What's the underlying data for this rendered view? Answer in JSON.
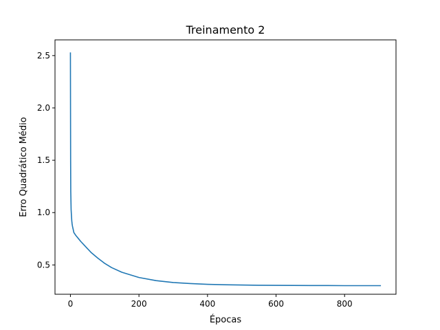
{
  "chart_data": {
    "type": "line",
    "title": "Treinamento 2",
    "xlabel": "Épocas",
    "ylabel": "Erro Quadrático Médio",
    "xlim": [
      -45,
      950
    ],
    "ylim": [
      0.22,
      2.65
    ],
    "xticks": [
      0,
      200,
      400,
      600,
      800
    ],
    "yticks": [
      0.5,
      1.0,
      1.5,
      2.0,
      2.5
    ],
    "xtick_labels": [
      "0",
      "200",
      "400",
      "600",
      "800"
    ],
    "ytick_labels": [
      "0.5",
      "1.0",
      "1.5",
      "2.0",
      "2.5"
    ],
    "grid": false,
    "series": [
      {
        "color": "#1f77b4",
        "x": [
          0,
          0.3,
          0.6,
          1,
          2,
          3,
          4,
          5,
          6,
          8,
          10,
          12,
          15,
          20,
          25,
          30,
          40,
          50,
          60,
          80,
          100,
          120,
          150,
          200,
          250,
          300,
          350,
          400,
          450,
          500,
          550,
          600,
          650,
          700,
          750,
          800,
          850,
          906
        ],
        "y": [
          2.53,
          2.0,
          1.5,
          1.2,
          1.03,
          0.97,
          0.92,
          0.89,
          0.87,
          0.84,
          0.81,
          0.8,
          0.785,
          0.765,
          0.745,
          0.725,
          0.69,
          0.655,
          0.62,
          0.565,
          0.515,
          0.475,
          0.43,
          0.38,
          0.35,
          0.332,
          0.322,
          0.315,
          0.311,
          0.308,
          0.306,
          0.305,
          0.304,
          0.303,
          0.303,
          0.302,
          0.302,
          0.302
        ]
      }
    ]
  }
}
